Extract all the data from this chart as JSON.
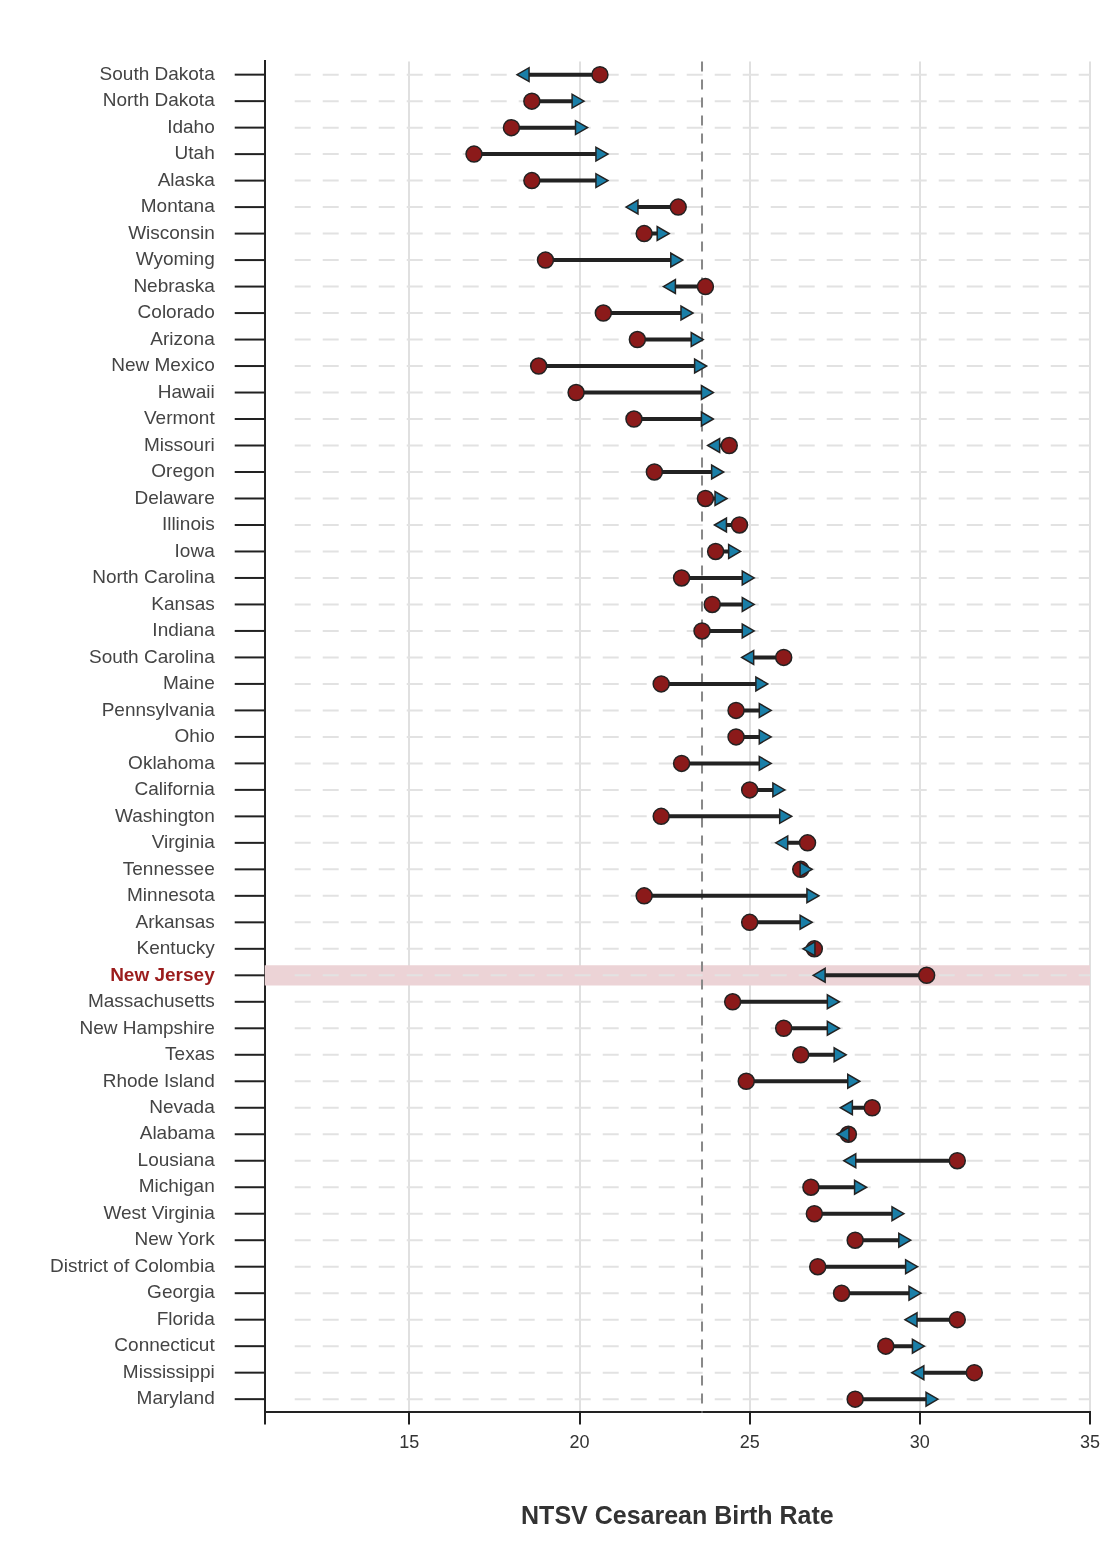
{
  "chart_data": {
    "type": "scatter",
    "orientation": "horizontal",
    "xlabel": "NTSV Cesarean Birth Rate",
    "categories": [
      "South Dakota",
      "North Dakota",
      "Idaho",
      "Utah",
      "Alaska",
      "Montana",
      "Wisconsin",
      "Wyoming",
      "Nebraska",
      "Colorado",
      "Arizona",
      "New Mexico",
      "Hawaii",
      "Vermont",
      "Missouri",
      "Oregon",
      "Delaware",
      "Illinois",
      "Iowa",
      "North Carolina",
      "Kansas",
      "Indiana",
      "South Carolina",
      "Maine",
      "Pennsylvania",
      "Ohio",
      "Oklahoma",
      "California",
      "Washington",
      "Virginia",
      "Tennessee",
      "Minnesota",
      "Arkansas",
      "Kentucky",
      "New Jersey",
      "Massachusetts",
      "New Hampshire",
      "Texas",
      "Rhode Island",
      "Nevada",
      "Alabama",
      "Lousiana",
      "Michigan",
      "West Virginia",
      "New York",
      "District of Colombia",
      "Georgia",
      "Florida",
      "Connecticut",
      "Mississippi",
      "Maryland"
    ],
    "series": [
      {
        "color": "#8b1a1a",
        "marker": "circle",
        "values": [
          20.6,
          18.6,
          18.0,
          16.9,
          18.6,
          22.9,
          21.9,
          19.0,
          23.7,
          20.7,
          21.7,
          18.8,
          19.9,
          21.6,
          24.4,
          22.2,
          23.7,
          24.7,
          24.0,
          23.0,
          23.9,
          23.6,
          26.0,
          22.4,
          24.6,
          24.6,
          23.0,
          25.0,
          22.4,
          26.7,
          26.5,
          21.9,
          25.0,
          26.9,
          30.2,
          24.5,
          26.0,
          26.5,
          24.9,
          28.6,
          27.9,
          31.1,
          26.8,
          26.9,
          28.1,
          27.0,
          27.7,
          31.1,
          29.0,
          31.6,
          28.1
        ]
      },
      {
        "color": "#1a7fa8",
        "marker": "triangle",
        "values": [
          18.4,
          19.9,
          20.0,
          20.6,
          20.6,
          21.6,
          22.4,
          22.8,
          22.7,
          23.1,
          23.4,
          23.5,
          23.7,
          23.7,
          24.0,
          24.0,
          24.1,
          24.2,
          24.5,
          24.9,
          24.9,
          24.9,
          25.0,
          25.3,
          25.4,
          25.4,
          25.4,
          25.8,
          26.0,
          26.0,
          26.6,
          26.8,
          26.6,
          26.8,
          27.1,
          27.4,
          27.4,
          27.6,
          28.0,
          27.9,
          27.8,
          28.0,
          28.2,
          29.3,
          29.5,
          29.7,
          29.8,
          29.8,
          29.9,
          30.0,
          30.3
        ]
      }
    ],
    "xlim": [
      10.75,
      35
    ],
    "xticks": [
      {
        "value": 10.75,
        "label": null
      },
      15,
      20,
      25,
      30,
      35
    ],
    "grid": true,
    "legend": false,
    "ref_lines": [
      {
        "axis": "x",
        "value": 23.6,
        "color": "#888888",
        "line_style": "dashed"
      }
    ],
    "bands": [
      {
        "axis": "y",
        "from": "New Jersey",
        "to": "New Jersey",
        "color": "#ecd3d6"
      }
    ]
  }
}
